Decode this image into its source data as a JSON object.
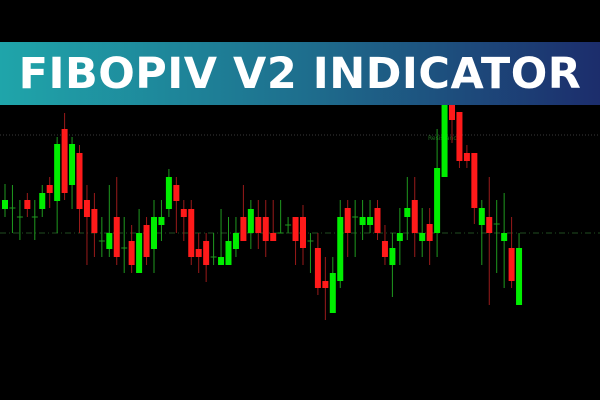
{
  "banner": {
    "title": "FIBOPIV V2 INDICATOR"
  },
  "chart_data": {
    "type": "candlestick",
    "title": "",
    "xlabel": "",
    "ylabel": "",
    "grid": false,
    "colors": {
      "up_body": "#00ee00",
      "down_body": "#ff1a1a",
      "up_wick": "#1f9a1f",
      "down_wick": "#9a1a1a",
      "background": "#000000"
    },
    "levels": [
      {
        "label": "Resistance",
        "value": 165,
        "style": "dotted",
        "color": "#3a3a3a"
      },
      {
        "label": "",
        "value": 67,
        "style": "dash-dot",
        "color": "#1f4d1f"
      }
    ],
    "ohlc": [
      [
        91,
        116,
        83,
        100
      ],
      [
        92,
        115,
        67,
        92
      ],
      [
        83,
        100,
        60,
        83
      ],
      [
        100,
        107,
        83,
        91
      ],
      [
        83,
        100,
        60,
        83
      ],
      [
        91,
        115,
        83,
        107
      ],
      [
        115,
        123,
        92,
        107
      ],
      [
        99,
        163,
        67,
        156
      ],
      [
        171,
        187,
        100,
        107
      ],
      [
        115,
        163,
        91,
        156
      ],
      [
        147,
        155,
        67,
        91
      ],
      [
        100,
        115,
        35,
        83
      ],
      [
        91,
        107,
        43,
        67
      ],
      [
        59,
        83,
        43,
        59
      ],
      [
        51,
        115,
        43,
        67
      ],
      [
        83,
        123,
        35,
        43
      ],
      [
        52,
        83,
        27,
        52
      ],
      [
        59,
        75,
        27,
        35
      ],
      [
        27,
        91,
        27,
        67
      ],
      [
        75,
        83,
        35,
        43
      ],
      [
        51,
        100,
        27,
        83
      ],
      [
        75,
        100,
        59,
        83
      ],
      [
        91,
        131,
        83,
        123
      ],
      [
        115,
        123,
        67,
        99
      ],
      [
        91,
        100,
        59,
        83
      ],
      [
        91,
        100,
        35,
        43
      ],
      [
        51,
        67,
        27,
        43
      ],
      [
        59,
        67,
        18,
        35
      ],
      [
        43,
        67,
        35,
        43
      ],
      [
        35,
        91,
        35,
        43
      ],
      [
        35,
        83,
        35,
        59
      ],
      [
        51,
        83,
        43,
        67
      ],
      [
        83,
        115,
        59,
        59
      ],
      [
        67,
        100,
        51,
        91
      ],
      [
        83,
        100,
        51,
        67
      ],
      [
        83,
        100,
        43,
        59
      ],
      [
        67,
        100,
        59,
        59
      ],
      [
        67,
        100,
        67,
        67
      ],
      [
        75,
        83,
        67,
        75
      ],
      [
        83,
        83,
        35,
        59
      ],
      [
        83,
        95,
        35,
        52
      ],
      [
        59,
        67,
        27,
        59
      ],
      [
        52,
        67,
        5,
        12
      ],
      [
        19,
        43,
        -20,
        12
      ],
      [
        -13,
        43,
        -13,
        27
      ],
      [
        19,
        100,
        12,
        83
      ],
      [
        92,
        100,
        43,
        67
      ],
      [
        83,
        100,
        43,
        83
      ],
      [
        75,
        100,
        60,
        83
      ],
      [
        75,
        100,
        67,
        83
      ],
      [
        92,
        100,
        60,
        67
      ],
      [
        59,
        75,
        35,
        43
      ],
      [
        35,
        67,
        3,
        52
      ],
      [
        59,
        92,
        35,
        67
      ],
      [
        83,
        123,
        60,
        92
      ],
      [
        100,
        123,
        43,
        67
      ],
      [
        59,
        92,
        43,
        67
      ],
      [
        76,
        92,
        35,
        59
      ],
      [
        67,
        171,
        43,
        132
      ],
      [
        123,
        210,
        123,
        195
      ],
      [
        205,
        215,
        157,
        180
      ],
      [
        188,
        188,
        132,
        139
      ],
      [
        147,
        155,
        132,
        139
      ],
      [
        147,
        147,
        76,
        92
      ],
      [
        75,
        100,
        35,
        92
      ],
      [
        83,
        123,
        -5,
        67
      ],
      [
        76,
        100,
        27,
        76
      ],
      [
        59,
        107,
        12,
        67
      ],
      [
        52,
        83,
        12,
        19
      ],
      [
        -5,
        67,
        -5,
        52
      ]
    ]
  }
}
